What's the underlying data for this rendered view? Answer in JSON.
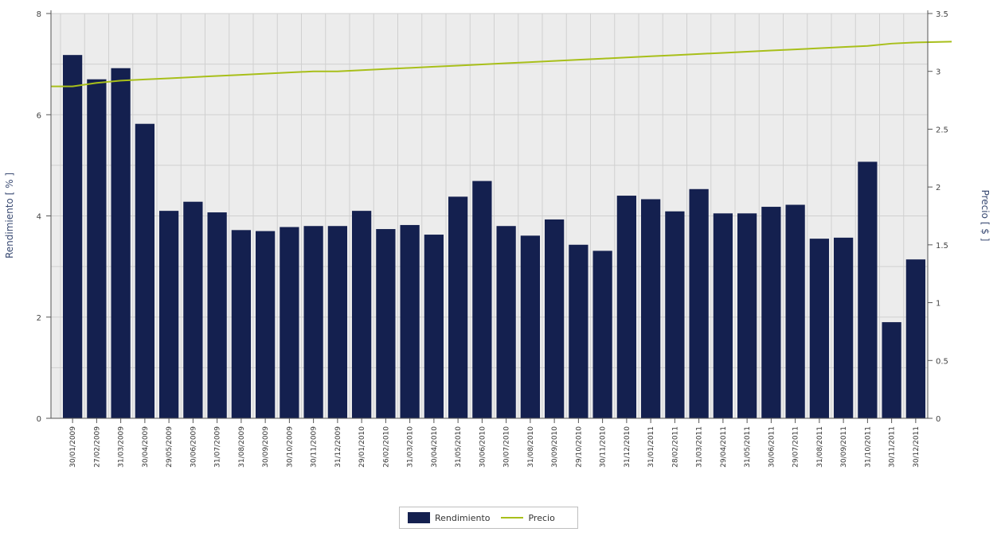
{
  "chart_data": {
    "type": "bar",
    "title": "",
    "xlabel": "",
    "ylabel": "Rendimiento [ % ]",
    "y2label": "Precio [ $ ]",
    "ylim": [
      0,
      8
    ],
    "y2lim": [
      0,
      3.5
    ],
    "yticks": [
      "0",
      "2",
      "4",
      "6",
      "8"
    ],
    "y2ticks": [
      "0",
      "0.5",
      "1",
      "1.5",
      "2",
      "2.5",
      "3",
      "3.5"
    ],
    "grid": true,
    "legend_position": "bottom-center",
    "categories": [
      "30/01/2009",
      "27/02/2009",
      "31/03/2009",
      "30/04/2009",
      "29/05/2009",
      "30/06/2009",
      "31/07/2009",
      "31/08/2009",
      "30/09/2009",
      "30/10/2009",
      "30/11/2009",
      "31/12/2009",
      "29/01/2010",
      "26/02/2010",
      "31/03/2010",
      "30/04/2010",
      "31/05/2010",
      "30/06/2010",
      "30/07/2010",
      "31/08/2010",
      "30/09/2010",
      "29/10/2010",
      "30/11/2010",
      "31/12/2010",
      "31/01/2011",
      "28/02/2011",
      "31/03/2011",
      "29/04/2011",
      "31/05/2011",
      "30/06/2011",
      "29/07/2011",
      "31/08/2011",
      "30/09/2011",
      "31/10/2011",
      "30/11/2011",
      "30/12/2011"
    ],
    "series": [
      {
        "name": "Rendimiento",
        "type": "bar",
        "axis": "left",
        "color": "#14204f",
        "values": [
          7.18,
          6.7,
          6.92,
          5.82,
          4.1,
          4.28,
          4.07,
          3.72,
          3.7,
          3.78,
          3.8,
          3.8,
          4.1,
          3.74,
          3.82,
          3.63,
          4.38,
          4.69,
          3.8,
          3.61,
          3.93,
          3.43,
          3.31,
          4.4,
          4.33,
          4.09,
          4.53,
          4.05,
          4.05,
          4.18,
          4.22,
          3.55,
          3.57,
          5.07,
          1.9,
          3.14
        ]
      },
      {
        "name": "Precio",
        "type": "line",
        "axis": "right",
        "color": "#a8bf1a",
        "values": [
          2.87,
          2.9,
          2.92,
          2.93,
          2.94,
          2.95,
          2.96,
          2.97,
          2.98,
          2.99,
          3.0,
          3.0,
          3.01,
          3.02,
          3.03,
          3.04,
          3.05,
          3.06,
          3.07,
          3.08,
          3.09,
          3.1,
          3.11,
          3.12,
          3.13,
          3.14,
          3.15,
          3.16,
          3.17,
          3.18,
          3.19,
          3.2,
          3.21,
          3.22,
          3.24,
          3.25
        ]
      }
    ]
  },
  "legend": {
    "items": [
      {
        "label": "Rendimiento",
        "color": "#14204f"
      },
      {
        "label": "Precio",
        "color": "#a8bf1a"
      }
    ]
  }
}
